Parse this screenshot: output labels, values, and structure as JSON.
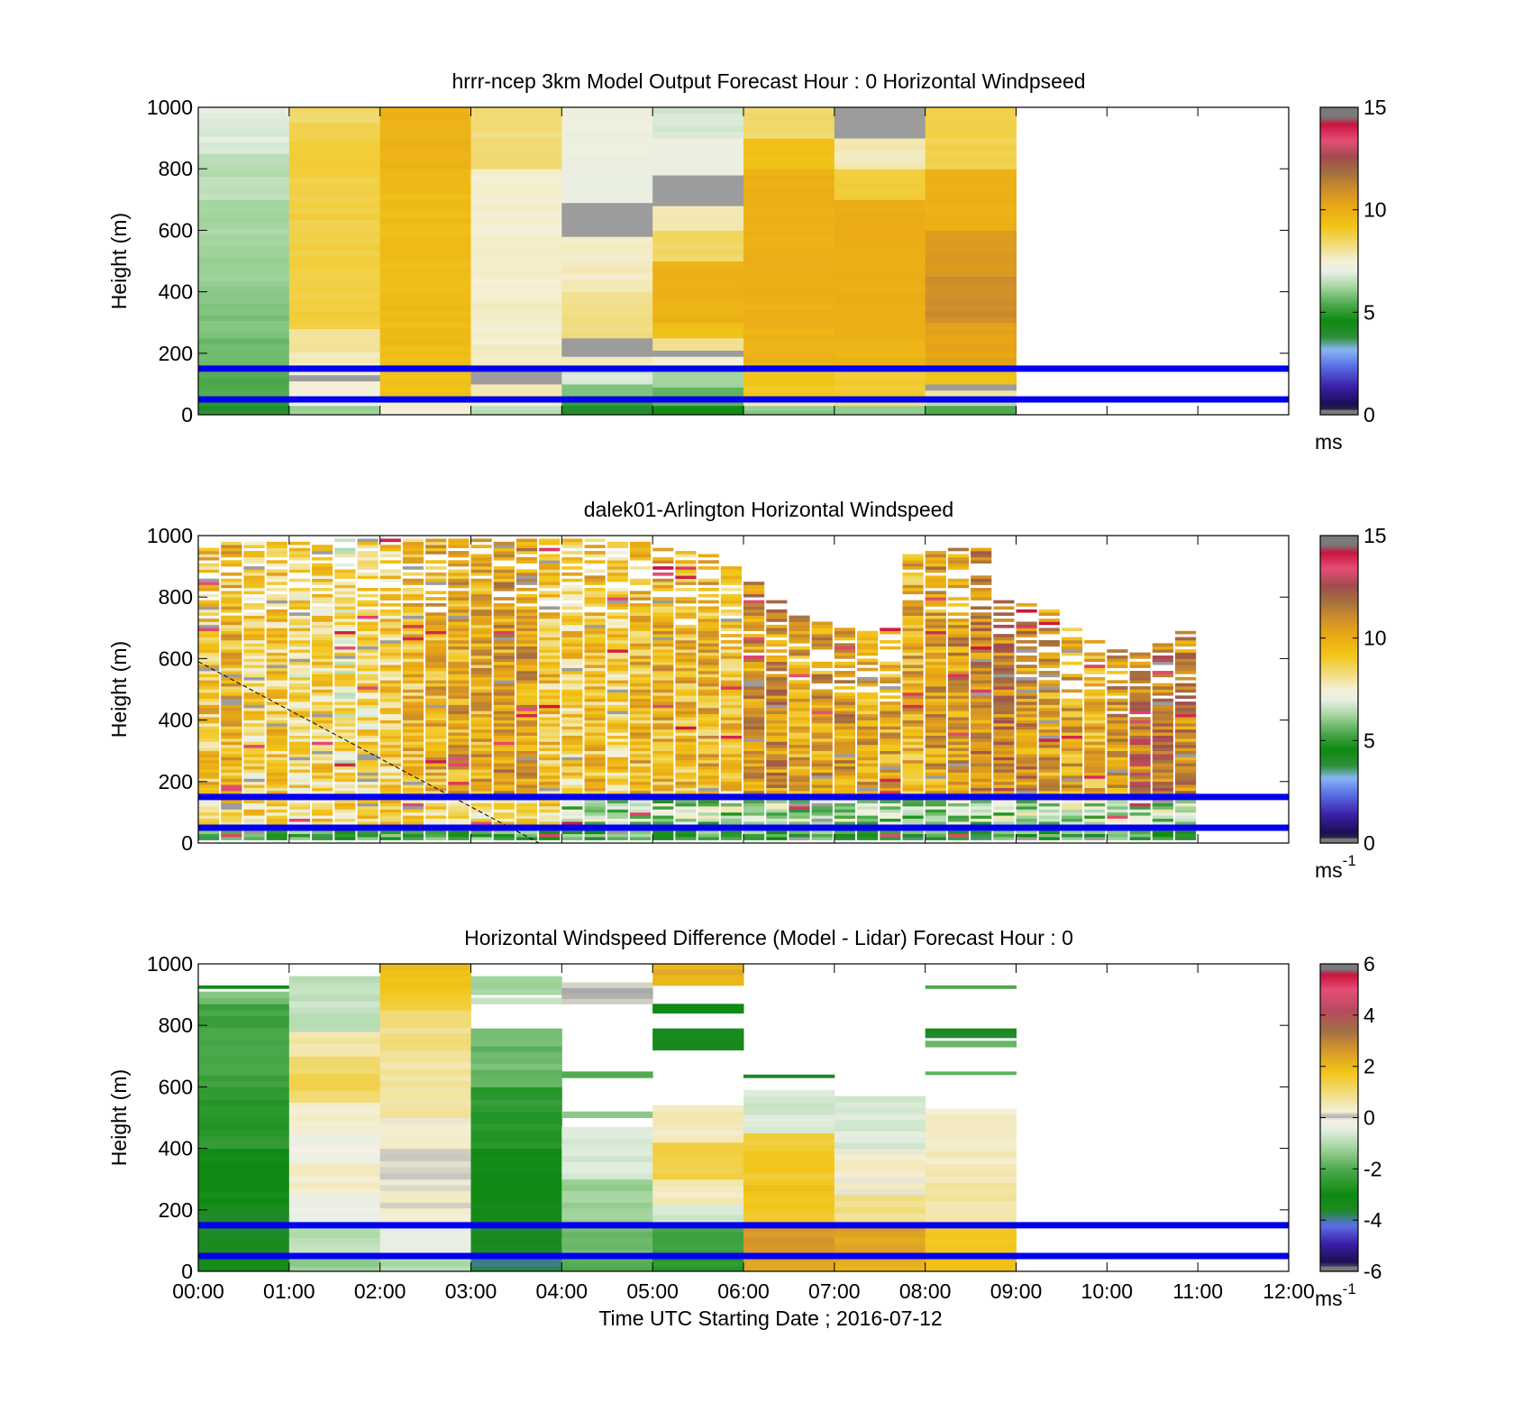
{
  "chart_data": [
    {
      "type": "heatmap",
      "title": "hrrr-ncep 3km Model Output   Forecast Hour : 0 Horizontal Windpseed",
      "ylabel": "Height (m)",
      "ylim": [
        0,
        1000
      ],
      "yticks": [
        "0",
        "200",
        "400",
        "600",
        "800",
        "1000"
      ],
      "xlim_hours": [
        0,
        12
      ],
      "colorbar": {
        "ticks": [
          "0",
          "5",
          "10",
          "15"
        ],
        "range": [
          0,
          15
        ],
        "unit": "ms",
        "unit_sup": ""
      },
      "reference_lines_m": [
        50,
        150
      ],
      "columns": [
        {
          "x_start": 0,
          "x_end": 1,
          "cells": [
            [
              0,
              30,
              4
            ],
            [
              30,
              60,
              5
            ],
            [
              60,
              140,
              5.4
            ],
            [
              140,
              250,
              5.7
            ],
            [
              250,
              400,
              5.9
            ],
            [
              400,
              550,
              6.1
            ],
            [
              550,
              700,
              6.3
            ],
            [
              700,
              850,
              6.5
            ],
            [
              850,
              1000,
              6.9
            ]
          ]
        },
        {
          "x_start": 1,
          "x_end": 2,
          "cells": [
            [
              0,
              30,
              6.2
            ],
            [
              30,
              60,
              7.2
            ],
            [
              60,
              110,
              7.5
            ],
            [
              110,
              130,
              14.8
            ],
            [
              130,
              150,
              7.4
            ],
            [
              150,
              205,
              7.7
            ],
            [
              205,
              280,
              8
            ],
            [
              280,
              950,
              8.8
            ],
            [
              950,
              1000,
              8.5
            ]
          ]
        },
        {
          "x_start": 2,
          "x_end": 3,
          "cells": [
            [
              0,
              40,
              7.5
            ],
            [
              40,
              60,
              8
            ],
            [
              60,
              150,
              9.3
            ],
            [
              150,
              340,
              9.5
            ],
            [
              340,
              800,
              9.5
            ],
            [
              800,
              1000,
              9.8
            ]
          ]
        },
        {
          "x_start": 3,
          "x_end": 4,
          "cells": [
            [
              0,
              30,
              6.5
            ],
            [
              30,
              60,
              7.5
            ],
            [
              60,
              100,
              7.8
            ],
            [
              100,
              150,
              14.8
            ],
            [
              150,
              800,
              7.6
            ],
            [
              800,
              1000,
              8.3
            ]
          ]
        },
        {
          "x_start": 4,
          "x_end": 5,
          "cells": [
            [
              0,
              30,
              4.2
            ],
            [
              30,
              60,
              5.2
            ],
            [
              60,
              100,
              6
            ],
            [
              100,
              150,
              6.8
            ],
            [
              150,
              190,
              7.8
            ],
            [
              190,
              250,
              14.8
            ],
            [
              250,
              400,
              8.2
            ],
            [
              400,
              580,
              7.7
            ],
            [
              580,
              690,
              14.8
            ],
            [
              690,
              1000,
              7.2
            ]
          ]
        },
        {
          "x_start": 5,
          "x_end": 6,
          "cells": [
            [
              0,
              30,
              4.5
            ],
            [
              30,
              90,
              5.6
            ],
            [
              90,
              150,
              6.2
            ],
            [
              150,
              190,
              7.5
            ],
            [
              190,
              210,
              14.8
            ],
            [
              210,
              250,
              8
            ],
            [
              250,
              300,
              9.3
            ],
            [
              300,
              500,
              9.8
            ],
            [
              500,
              600,
              8.5
            ],
            [
              600,
              680,
              7.8
            ],
            [
              680,
              780,
              14.8
            ],
            [
              780,
              900,
              7.2
            ],
            [
              900,
              1000,
              6.8
            ]
          ]
        },
        {
          "x_start": 6,
          "x_end": 7,
          "cells": [
            [
              0,
              30,
              6
            ],
            [
              30,
              60,
              8
            ],
            [
              60,
              150,
              9.2
            ],
            [
              150,
              300,
              9.8
            ],
            [
              300,
              800,
              9.9
            ],
            [
              800,
              900,
              9.3
            ],
            [
              900,
              1000,
              8.4
            ]
          ]
        },
        {
          "x_start": 7,
          "x_end": 8,
          "cells": [
            [
              0,
              30,
              6
            ],
            [
              30,
              60,
              8.2
            ],
            [
              60,
              150,
              9
            ],
            [
              150,
              300,
              9.8
            ],
            [
              300,
              700,
              10
            ],
            [
              700,
              800,
              8.8
            ],
            [
              800,
              900,
              7.8
            ],
            [
              900,
              1000,
              14.8
            ]
          ]
        },
        {
          "x_start": 8,
          "x_end": 9,
          "cells": [
            [
              0,
              30,
              5.5
            ],
            [
              30,
              60,
              6.5
            ],
            [
              60,
              80,
              8
            ],
            [
              80,
              100,
              14.8
            ],
            [
              100,
              150,
              9.4
            ],
            [
              150,
              300,
              10.3
            ],
            [
              300,
              450,
              11
            ],
            [
              450,
              600,
              10.6
            ],
            [
              600,
              800,
              9.8
            ],
            [
              800,
              1000,
              8.7
            ]
          ]
        }
      ]
    },
    {
      "type": "heatmap",
      "title": "dalek01-Arlington  Horizontal Windspeed",
      "ylabel": "Height (m)",
      "ylim": [
        0,
        1000
      ],
      "yticks": [
        "0",
        "200",
        "400",
        "600",
        "800",
        "1000"
      ],
      "xlim_hours": [
        0,
        12
      ],
      "colorbar": {
        "ticks": [
          "0",
          "5",
          "10",
          "15"
        ],
        "range": [
          0,
          15
        ],
        "unit": "ms",
        "unit_sup": "-1"
      },
      "reference_lines_m": [
        50,
        150
      ],
      "lidar_columns": {
        "bin_hours": 0.25,
        "n_bins": 44,
        "top_m": [
          960,
          980,
          980,
          980,
          980,
          980,
          990,
          990,
          990,
          990,
          990,
          990,
          990,
          990,
          990,
          990,
          990,
          990,
          990,
          980,
          960,
          950,
          940,
          900,
          850,
          790,
          740,
          720,
          700,
          690,
          700,
          940,
          950,
          960,
          960,
          790,
          780,
          760,
          700,
          660,
          640,
          650,
          660,
          690
        ],
        "dominant_ms": [
          9.2,
          9.6,
          8.6,
          9.0,
          8.4,
          8.7,
          8.0,
          8.5,
          8.8,
          9.5,
          9.8,
          10.2,
          10.0,
          10.5,
          10.3,
          9.2,
          8.9,
          9.4,
          8.8,
          9.6,
          9.8,
          9.5,
          9.7,
          9.1,
          10.6,
          10.8,
          10.2,
          10.4,
          10.5,
          10.1,
          10.0,
          9.9,
          10.3,
          10.6,
          10.9,
          11.2,
          10.7,
          10.3,
          10.1,
          9.8,
          10.5,
          11.6,
          11.4,
          11.1
        ]
      },
      "diagonal_line_m": [
        [
          0,
          590
        ],
        [
          3.75,
          0
        ]
      ]
    },
    {
      "type": "heatmap",
      "title": "Horizontal Windspeed Difference (Model - Lidar) Forecast Hour : 0",
      "xlabel": "Time UTC  Starting Date ; 2016-07-12",
      "ylabel": "Height (m)",
      "ylim": [
        0,
        1000
      ],
      "yticks": [
        "0",
        "200",
        "400",
        "600",
        "800",
        "1000"
      ],
      "xticks": [
        "00:00",
        "01:00",
        "02:00",
        "03:00",
        "04:00",
        "05:00",
        "06:00",
        "07:00",
        "08:00",
        "09:00",
        "10:00",
        "11:00",
        "12:00"
      ],
      "xlim_hours": [
        0,
        12
      ],
      "colorbar": {
        "ticks": [
          "-6",
          "-4",
          "-2",
          "0",
          "2",
          "4",
          "6"
        ],
        "range": [
          -6,
          6
        ],
        "unit": "ms",
        "unit_sup": "-1"
      },
      "reference_lines_m": [
        50,
        150
      ],
      "columns": [
        {
          "x_start": 0,
          "x_end": 1,
          "cells": [
            [
              0,
              50,
              -3.2
            ],
            [
              50,
              200,
              -3.5
            ],
            [
              200,
              400,
              -3
            ],
            [
              400,
              600,
              -2.6
            ],
            [
              600,
              870,
              -2.2
            ],
            [
              870,
              910,
              -1.6
            ],
            [
              920,
              930,
              -3.3
            ]
          ]
        },
        {
          "x_start": 1,
          "x_end": 2,
          "cells": [
            [
              0,
              50,
              -1.3
            ],
            [
              50,
              150,
              -0.9
            ],
            [
              150,
              250,
              -0.3
            ],
            [
              250,
              350,
              0.4
            ],
            [
              350,
              450,
              -0.2
            ],
            [
              450,
              550,
              0.4
            ],
            [
              550,
              700,
              1.2
            ],
            [
              700,
              780,
              0.7
            ],
            [
              780,
              960,
              -0.8
            ]
          ]
        },
        {
          "x_start": 2,
          "x_end": 3,
          "cells": [
            [
              0,
              50,
              -1
            ],
            [
              50,
              150,
              -0.3
            ],
            [
              150,
              300,
              0.3
            ],
            [
              300,
              500,
              0.2
            ],
            [
              500,
              700,
              0.7
            ],
            [
              700,
              850,
              0.9
            ],
            [
              850,
              900,
              1.6
            ],
            [
              900,
              1000,
              1.9
            ]
          ]
        },
        {
          "x_start": 3,
          "x_end": 4,
          "cells": [
            [
              0,
              50,
              -3.8
            ],
            [
              50,
              150,
              -3.6
            ],
            [
              150,
              400,
              -3.2
            ],
            [
              400,
              600,
              -2.5
            ],
            [
              600,
              790,
              -1.7
            ],
            [
              870,
              890,
              -0.8
            ],
            [
              900,
              960,
              -1.2
            ]
          ]
        },
        {
          "x_start": 4,
          "x_end": 5,
          "cells": [
            [
              0,
              50,
              -2
            ],
            [
              50,
              150,
              -1.6
            ],
            [
              150,
              300,
              -1.2
            ],
            [
              300,
              470,
              -0.6
            ],
            [
              500,
              520,
              -1.5
            ],
            [
              630,
              650,
              -2
            ],
            [
              870,
              940,
              0.1
            ]
          ]
        },
        {
          "x_start": 5,
          "x_end": 6,
          "cells": [
            [
              0,
              50,
              -2.5
            ],
            [
              50,
              150,
              -2.2
            ],
            [
              150,
              220,
              -0.6
            ],
            [
              220,
              300,
              0.5
            ],
            [
              300,
              420,
              1.4
            ],
            [
              420,
              540,
              0.5
            ],
            [
              720,
              790,
              -3.5
            ],
            [
              840,
              870,
              -3
            ],
            [
              930,
              1000,
              2.2
            ]
          ]
        },
        {
          "x_start": 6,
          "x_end": 7,
          "cells": [
            [
              0,
              50,
              2.4
            ],
            [
              50,
              150,
              2.6
            ],
            [
              150,
              300,
              1.8
            ],
            [
              300,
              450,
              1.6
            ],
            [
              450,
              590,
              -0.6
            ],
            [
              630,
              640,
              -3.5
            ]
          ]
        },
        {
          "x_start": 7,
          "x_end": 8,
          "cells": [
            [
              0,
              50,
              2.2
            ],
            [
              50,
              150,
              2.4
            ],
            [
              150,
              250,
              0.9
            ],
            [
              250,
              400,
              0.3
            ],
            [
              400,
              570,
              -0.5
            ]
          ]
        },
        {
          "x_start": 8,
          "x_end": 9,
          "cells": [
            [
              0,
              50,
              1.8
            ],
            [
              50,
              150,
              1.6
            ],
            [
              150,
              350,
              0.6
            ],
            [
              350,
              530,
              0.4
            ],
            [
              640,
              650,
              -2
            ],
            [
              730,
              750,
              -1.8
            ],
            [
              760,
              790,
              -3.5
            ],
            [
              920,
              930,
              -2
            ]
          ]
        }
      ]
    }
  ]
}
